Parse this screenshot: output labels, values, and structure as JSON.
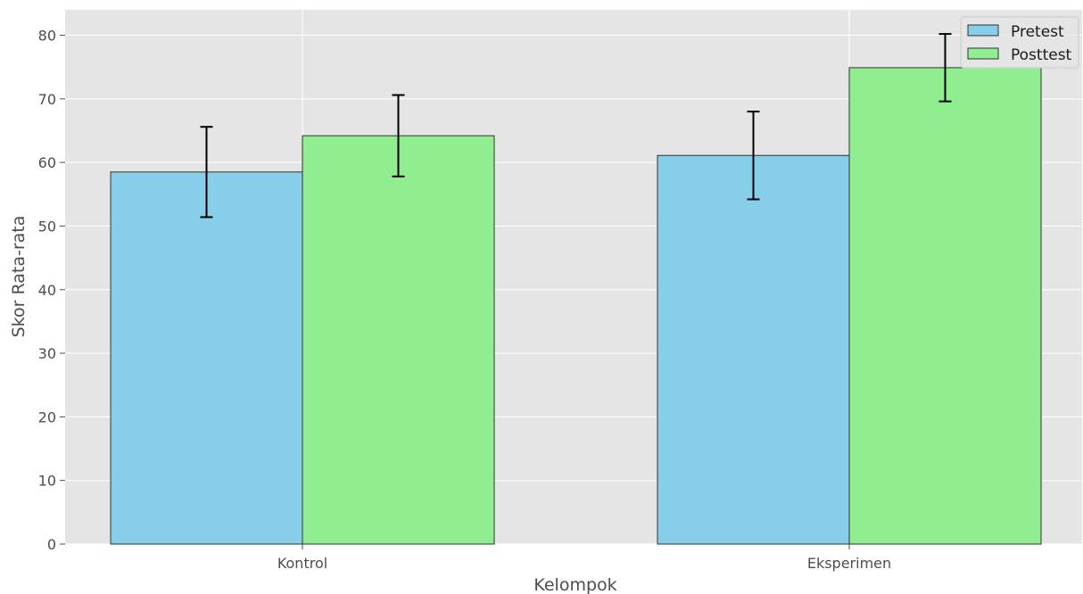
{
  "chart_data": {
    "type": "bar",
    "title": "",
    "xlabel": "Kelompok",
    "ylabel": "Skor Rata-rata",
    "categories": [
      "Kontrol",
      "Eksperimen"
    ],
    "series": [
      {
        "name": "Pretest",
        "values": [
          58.5,
          61.1
        ],
        "errors": [
          7.1,
          6.9
        ],
        "color": "#87ceeb"
      },
      {
        "name": "Posttest",
        "values": [
          64.2,
          74.9
        ],
        "errors": [
          6.4,
          5.3
        ],
        "color": "#90ee90"
      }
    ],
    "ylim": [
      0,
      84
    ],
    "yticks": [
      0,
      10,
      20,
      30,
      40,
      50,
      60,
      70,
      80
    ],
    "grid": true,
    "legend_position": "top-right",
    "background_color": "#e5e5e5",
    "edge_color": "#333333"
  }
}
